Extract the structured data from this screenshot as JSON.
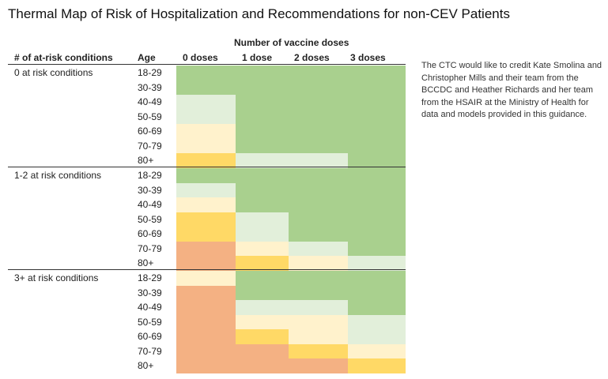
{
  "title": "Thermal Map of Risk of Hospitalization and Recommendations for non-CEV Patients",
  "credit": "The CTC would like to credit Kate Smolina and Christopher Mills and their team from the BCCDC and Heather Richards and her team from the HSAIR at the Ministry of Health for data and models provided in this guidance.",
  "colors": {
    "green": "#a9d08e",
    "light_green": "#e2efda",
    "light_yellow": "#fff2cc",
    "yellow": "#ffd966",
    "orange": "#f4b183"
  },
  "chart_data": {
    "type": "heatmap",
    "title": "Thermal Map of Risk of Hospitalization and Recommendations for non-CEV Patients",
    "column_group_label": "Number of vaccine doses",
    "group_header": "# of at-risk conditions",
    "age_header": "Age",
    "columns": [
      "0 doses",
      "1 dose",
      "2 doses",
      "3 doses"
    ],
    "legend": {
      "G": "green",
      "L": "light green",
      "Y": "light yellow",
      "D": "yellow",
      "O": "orange"
    },
    "groups": [
      {
        "name": "0 at risk conditions",
        "rows": [
          {
            "age": "18-29",
            "cells": [
              "G",
              "G",
              "G",
              "G"
            ]
          },
          {
            "age": "30-39",
            "cells": [
              "G",
              "G",
              "G",
              "G"
            ]
          },
          {
            "age": "40-49",
            "cells": [
              "L",
              "G",
              "G",
              "G"
            ]
          },
          {
            "age": "50-59",
            "cells": [
              "L",
              "G",
              "G",
              "G"
            ]
          },
          {
            "age": "60-69",
            "cells": [
              "Y",
              "G",
              "G",
              "G"
            ]
          },
          {
            "age": "70-79",
            "cells": [
              "Y",
              "G",
              "G",
              "G"
            ]
          },
          {
            "age": "80+",
            "cells": [
              "D",
              "L",
              "L",
              "G"
            ]
          }
        ]
      },
      {
        "name": "1-2 at risk conditions",
        "rows": [
          {
            "age": "18-29",
            "cells": [
              "G",
              "G",
              "G",
              "G"
            ]
          },
          {
            "age": "30-39",
            "cells": [
              "L",
              "G",
              "G",
              "G"
            ]
          },
          {
            "age": "40-49",
            "cells": [
              "Y",
              "G",
              "G",
              "G"
            ]
          },
          {
            "age": "50-59",
            "cells": [
              "D",
              "L",
              "G",
              "G"
            ]
          },
          {
            "age": "60-69",
            "cells": [
              "D",
              "L",
              "G",
              "G"
            ]
          },
          {
            "age": "70-79",
            "cells": [
              "O",
              "Y",
              "L",
              "G"
            ]
          },
          {
            "age": "80+",
            "cells": [
              "O",
              "D",
              "Y",
              "L"
            ]
          }
        ]
      },
      {
        "name": "3+ at risk conditions",
        "rows": [
          {
            "age": "18-29",
            "cells": [
              "Y",
              "G",
              "G",
              "G"
            ]
          },
          {
            "age": "30-39",
            "cells": [
              "O",
              "G",
              "G",
              "G"
            ]
          },
          {
            "age": "40-49",
            "cells": [
              "O",
              "L",
              "L",
              "G"
            ]
          },
          {
            "age": "50-59",
            "cells": [
              "O",
              "Y",
              "Y",
              "L"
            ]
          },
          {
            "age": "60-69",
            "cells": [
              "O",
              "D",
              "Y",
              "L"
            ]
          },
          {
            "age": "70-79",
            "cells": [
              "O",
              "O",
              "D",
              "Y"
            ]
          },
          {
            "age": "80+",
            "cells": [
              "O",
              "O",
              "O",
              "D"
            ]
          }
        ]
      }
    ]
  }
}
